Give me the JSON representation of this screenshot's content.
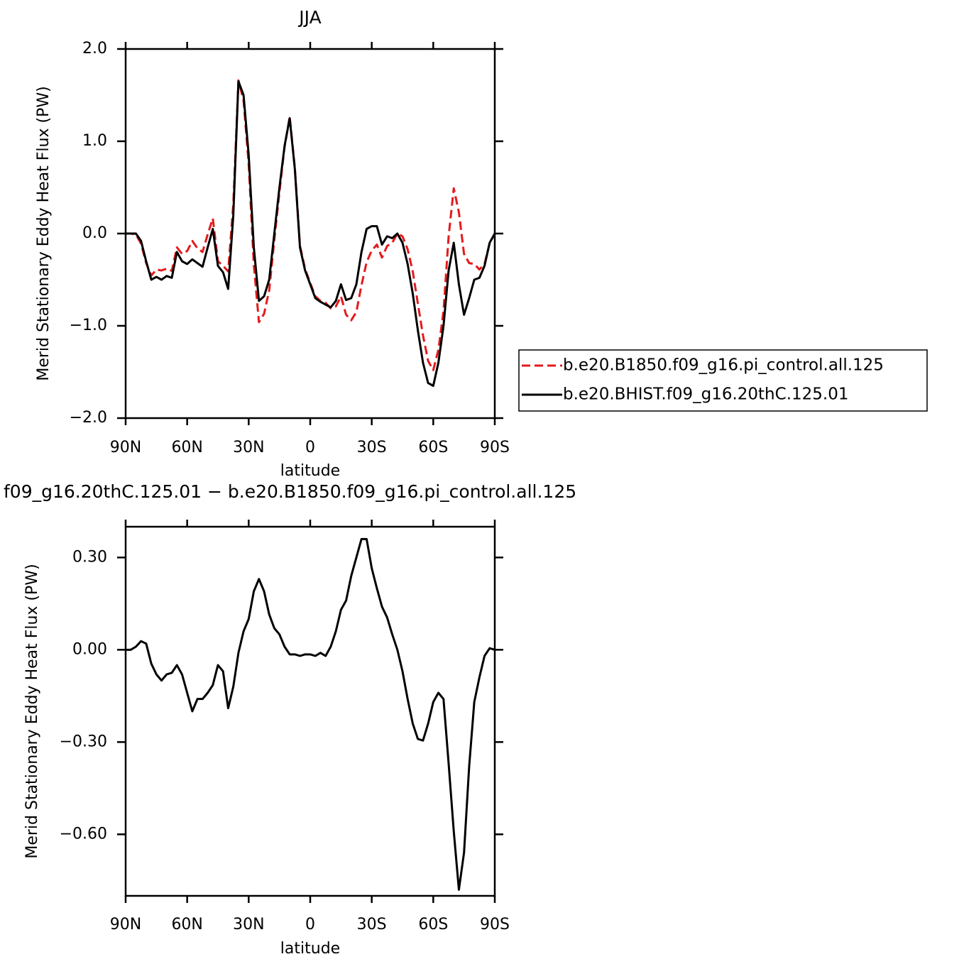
{
  "chart_data": [
    {
      "type": "line",
      "title": "JJA",
      "xlabel": "latitude",
      "ylabel": "Merid Stationary Eddy Heat Flux (PW)",
      "x": [
        90,
        87.5,
        85,
        82.5,
        80,
        77.5,
        75,
        72.5,
        70,
        67.5,
        65,
        62.5,
        60,
        57.5,
        55,
        52.5,
        50,
        47.5,
        45,
        42.5,
        40,
        37.5,
        35,
        32.5,
        30,
        27.5,
        25,
        22.5,
        20,
        17.5,
        15,
        12.5,
        10,
        7.5,
        5,
        2.5,
        0,
        -2.5,
        -5,
        -7.5,
        -10,
        -12.5,
        -15,
        -17.5,
        -20,
        -22.5,
        -25,
        -27.5,
        -30,
        -32.5,
        -35,
        -37.5,
        -40,
        -42.5,
        -45,
        -47.5,
        -50,
        -52.5,
        -55,
        -57.5,
        -60,
        -62.5,
        -65,
        -67.5,
        -70,
        -72.5,
        -75,
        -77.5,
        -80,
        -82.5,
        -85,
        -87.5,
        -90
      ],
      "series": [
        {
          "name": "b.e20.B1850.f09_g16.pi_control.all.125",
          "color": "#e41a1c",
          "linestyle": "dashed",
          "values": [
            0,
            0,
            -0.01,
            -0.11,
            -0.32,
            -0.455,
            -0.39,
            -0.4,
            -0.38,
            -0.405,
            -0.15,
            -0.22,
            -0.19,
            -0.08,
            -0.16,
            -0.2,
            -0.01,
            0.165,
            -0.3,
            -0.35,
            -0.41,
            0.32,
            1.66,
            1.44,
            0.75,
            -0.34,
            -0.96,
            -0.87,
            -0.615,
            -0.07,
            0.45,
            0.94,
            1.265,
            0.715,
            -0.13,
            -0.385,
            -0.535,
            -0.68,
            -0.73,
            -0.75,
            -0.81,
            -0.79,
            -0.68,
            -0.88,
            -0.94,
            -0.85,
            -0.56,
            -0.31,
            -0.185,
            -0.12,
            -0.26,
            -0.135,
            -0.1,
            0,
            -0.03,
            -0.17,
            -0.41,
            -0.76,
            -1.105,
            -1.38,
            -1.48,
            -1.26,
            -0.84,
            -0.03,
            0.49,
            0.23,
            -0.22,
            -0.32,
            -0.33,
            -0.39,
            -0.33,
            -0.105,
            0
          ]
        },
        {
          "name": "b.e20.BHIST.f09_g16.20thC.125.01",
          "color": "#000000",
          "linestyle": "solid",
          "values": [
            0,
            0,
            0,
            -0.08,
            -0.3,
            -0.5,
            -0.47,
            -0.5,
            -0.46,
            -0.48,
            -0.2,
            -0.3,
            -0.33,
            -0.28,
            -0.32,
            -0.36,
            -0.15,
            0.05,
            -0.35,
            -0.42,
            -0.6,
            0.2,
            1.65,
            1.5,
            0.85,
            -0.15,
            -0.73,
            -0.68,
            -0.5,
            0,
            0.5,
            0.95,
            1.25,
            0.7,
            -0.15,
            -0.4,
            -0.55,
            -0.7,
            -0.74,
            -0.77,
            -0.8,
            -0.73,
            -0.55,
            -0.72,
            -0.7,
            -0.55,
            -0.2,
            0.05,
            0.08,
            0.08,
            -0.12,
            -0.03,
            -0.05,
            0,
            -0.1,
            -0.33,
            -0.65,
            -1.05,
            -1.4,
            -1.62,
            -1.65,
            -1.4,
            -1,
            -0.4,
            -0.1,
            -0.55,
            -0.88,
            -0.7,
            -0.5,
            -0.48,
            -0.35,
            -0.1,
            0
          ]
        }
      ],
      "xlim": [
        90,
        -90
      ],
      "xticks": [
        {
          "value": 90,
          "label": "90N"
        },
        {
          "value": 60,
          "label": "60N"
        },
        {
          "value": 30,
          "label": "30N"
        },
        0,
        {
          "value": -30,
          "label": "30S"
        },
        {
          "value": -60,
          "label": "60S"
        },
        {
          "value": -90,
          "label": "90S"
        }
      ],
      "ylim": [
        -2,
        2
      ],
      "yticks": [
        {
          "value": 2,
          "label": "2.0"
        },
        {
          "value": 1,
          "label": "1.0"
        },
        {
          "value": 0,
          "label": "0.0"
        },
        {
          "value": -1,
          "label": "−1.0"
        },
        {
          "value": -2,
          "label": "−2.0"
        }
      ],
      "legend": "right"
    },
    {
      "type": "line",
      "title": "f09_g16.20thC.125.01 − b.e20.B1850.f09_g16.pi_control.all.125",
      "xlabel": "latitude",
      "ylabel": "Merid Stationary Eddy Heat Flux (PW)",
      "x": [
        90,
        87.5,
        85,
        82.5,
        80,
        77.5,
        75,
        72.5,
        70,
        67.5,
        65,
        62.5,
        60,
        57.5,
        55,
        52.5,
        50,
        47.5,
        45,
        42.5,
        40,
        37.5,
        35,
        32.5,
        30,
        27.5,
        25,
        22.5,
        20,
        17.5,
        15,
        12.5,
        10,
        7.5,
        5,
        2.5,
        0,
        -2.5,
        -5,
        -7.5,
        -10,
        -12.5,
        -15,
        -17.5,
        -20,
        -22.5,
        -25,
        -27.5,
        -30,
        -32.5,
        -35,
        -37.5,
        -40,
        -42.5,
        -45,
        -47.5,
        -50,
        -52.5,
        -55,
        -57.5,
        -60,
        -62.5,
        -65,
        -67.5,
        -70,
        -72.5,
        -75,
        -77.5,
        -80,
        -82.5,
        -85,
        -87.5,
        -90
      ],
      "color": "#000000",
      "values": [
        0,
        0,
        0.01,
        0.028,
        0.02,
        -0.045,
        -0.08,
        -0.1,
        -0.08,
        -0.075,
        -0.05,
        -0.08,
        -0.14,
        -0.2,
        -0.16,
        -0.16,
        -0.14,
        -0.115,
        -0.05,
        -0.07,
        -0.19,
        -0.12,
        -0.01,
        0.06,
        0.1,
        0.19,
        0.23,
        0.19,
        0.115,
        0.07,
        0.05,
        0.01,
        -0.015,
        -0.015,
        -0.02,
        -0.015,
        -0.015,
        -0.02,
        -0.01,
        -0.02,
        0.01,
        0.06,
        0.13,
        0.16,
        0.24,
        0.3,
        0.36,
        0.36,
        0.265,
        0.2,
        0.14,
        0.105,
        0.05,
        0,
        -0.07,
        -0.16,
        -0.24,
        -0.29,
        -0.295,
        -0.24,
        -0.17,
        -0.14,
        -0.16,
        -0.37,
        -0.59,
        -0.78,
        -0.66,
        -0.38,
        -0.17,
        -0.09,
        -0.02,
        0.005,
        0
      ],
      "xlim": [
        90,
        -90
      ],
      "xticks": [
        {
          "value": 90,
          "label": "90N"
        },
        {
          "value": 60,
          "label": "60N"
        },
        {
          "value": 30,
          "label": "30N"
        },
        0,
        {
          "value": -30,
          "label": "30S"
        },
        {
          "value": -60,
          "label": "60S"
        },
        {
          "value": -90,
          "label": "90S"
        }
      ],
      "ylim": [
        -0.8,
        0.4
      ],
      "yticks": [
        {
          "value": 0.3,
          "label": "0.30"
        },
        {
          "value": 0,
          "label": "0.00"
        },
        {
          "value": -0.3,
          "label": "−0.30"
        },
        {
          "value": -0.6,
          "label": "−0.60"
        }
      ]
    }
  ]
}
